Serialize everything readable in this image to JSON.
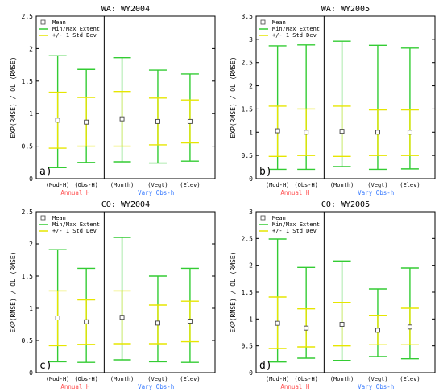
{
  "chart_data": [
    {
      "type": "errorbar",
      "title": "WA: WY2004",
      "panel_label": "a)",
      "ylabel": "EXP(RMSE) / OL (RMSE)",
      "ylim": [
        0,
        2.5
      ],
      "yticks": [
        "0",
        "0.5",
        "1",
        "1.5",
        "2",
        "2.5"
      ],
      "legend": [
        "Mean",
        "Min/Max Extent",
        "+/- 1 Std Dev"
      ],
      "categories": [
        "(Mod-H)",
        "(Obs-H)",
        "(Month)",
        "(Vegt)",
        "(Elev)"
      ],
      "group_labels": [
        "Annual H",
        "Vary Obs-h"
      ],
      "mean": [
        0.9,
        0.87,
        0.92,
        0.88,
        0.88
      ],
      "min": [
        0.17,
        0.25,
        0.26,
        0.24,
        0.27
      ],
      "max": [
        1.89,
        1.68,
        1.86,
        1.67,
        1.61
      ],
      "std_low": [
        0.47,
        0.5,
        0.5,
        0.52,
        0.55
      ],
      "std_high": [
        1.33,
        1.25,
        1.34,
        1.24,
        1.21
      ]
    },
    {
      "type": "errorbar",
      "title": "WA: WY2005",
      "panel_label": "b)",
      "ylabel": "EXP(RMSE) / OL (RMSE)",
      "ylim": [
        0,
        3.5
      ],
      "yticks": [
        "0",
        "0.5",
        "1",
        "1.5",
        "2",
        "2.5",
        "3",
        "3.5"
      ],
      "legend": [
        "Mean",
        "Min/Max Extent",
        "+/- 1 Std Dev"
      ],
      "categories": [
        "(Mod-H)",
        "(Obs-H)",
        "(Month)",
        "(Vegt)",
        "(Elev)"
      ],
      "group_labels": [
        "Annual H",
        "Vary Obs-h"
      ],
      "mean": [
        1.03,
        1.0,
        1.02,
        1.0,
        1.0
      ],
      "min": [
        0.2,
        0.2,
        0.26,
        0.2,
        0.21
      ],
      "max": [
        2.86,
        2.88,
        2.96,
        2.87,
        2.81
      ],
      "std_low": [
        0.48,
        0.5,
        0.48,
        0.5,
        0.5
      ],
      "std_high": [
        1.56,
        1.5,
        1.56,
        1.48,
        1.48
      ]
    },
    {
      "type": "errorbar",
      "title": "CO: WY2004",
      "panel_label": "c)",
      "ylabel": "EXP(RMSE) / OL (RMSE)",
      "ylim": [
        0,
        2.5
      ],
      "yticks": [
        "0",
        "0.5",
        "1",
        "1.5",
        "2",
        "2.5"
      ],
      "legend": [
        "Mean",
        "Min/Max Extent",
        "+/- 1 Std Dev"
      ],
      "categories": [
        "(Mod-H)",
        "(Obs-H)",
        "(Month)",
        "(Vegt)",
        "(Elev)"
      ],
      "group_labels": [
        "Annual H",
        "Vary Obs-h"
      ],
      "mean": [
        0.85,
        0.79,
        0.86,
        0.77,
        0.8
      ],
      "min": [
        0.17,
        0.16,
        0.2,
        0.17,
        0.16
      ],
      "max": [
        1.91,
        1.62,
        2.1,
        1.5,
        1.62
      ],
      "std_low": [
        0.42,
        0.44,
        0.45,
        0.45,
        0.48
      ],
      "std_high": [
        1.27,
        1.13,
        1.27,
        1.05,
        1.11
      ]
    },
    {
      "type": "errorbar",
      "title": "CO: WY2005",
      "panel_label": "d)",
      "ylabel": "EXP(RMSE) / OL (RMSE)",
      "ylim": [
        0,
        3
      ],
      "yticks": [
        "0",
        "0.5",
        "1",
        "1.5",
        "2",
        "2.5",
        "3"
      ],
      "legend": [
        "Mean",
        "Min/Max Extent",
        "+/- 1 Std Dev"
      ],
      "categories": [
        "(Mod-H)",
        "(Obs-H)",
        "(Month)",
        "(Vegt)",
        "(Elev)"
      ],
      "group_labels": [
        "Annual H",
        "Vary Obs-h"
      ],
      "mean": [
        0.92,
        0.83,
        0.9,
        0.79,
        0.85
      ],
      "min": [
        0.2,
        0.27,
        0.23,
        0.3,
        0.26
      ],
      "max": [
        2.49,
        1.96,
        2.08,
        1.56,
        1.95
      ],
      "std_low": [
        0.45,
        0.48,
        0.5,
        0.52,
        0.52
      ],
      "std_high": [
        1.41,
        1.19,
        1.31,
        1.07,
        1.2
      ]
    }
  ],
  "colors": {
    "minmax": "#33cc33",
    "std": "#e6e600",
    "mean": "#444444",
    "group_annual": "#ff5555",
    "group_vary": "#3377ff",
    "axis": "#000000"
  }
}
